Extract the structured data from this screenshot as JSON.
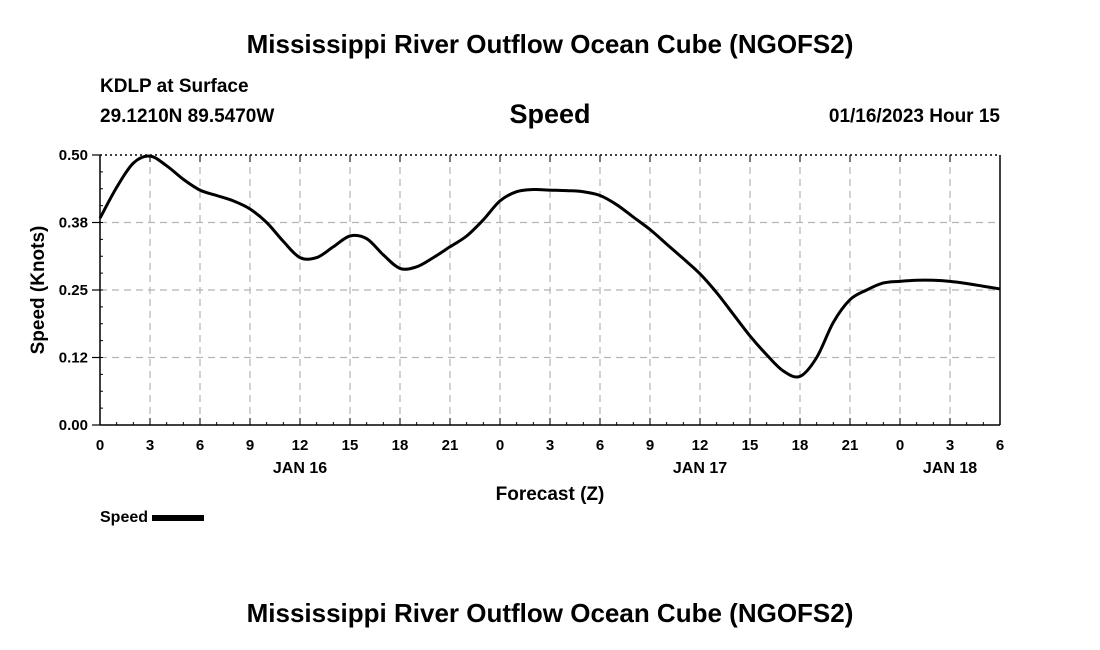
{
  "title": "Mississippi River Outflow Ocean Cube (NGOFS2)",
  "footer_title": "Mississippi River Outflow Ocean Cube (NGOFS2)",
  "station": "KDLP at Surface",
  "coordinates": "29.1210N  89.5470W",
  "variable": "Speed",
  "timestamp": "01/16/2023 Hour 15",
  "legend_label": "Speed",
  "chart_data": {
    "type": "line",
    "title": "Speed",
    "xlabel": "Forecast (Z)",
    "ylabel": "Speed (Knots)",
    "x_unit": "forecast hour (from Jan 16 00Z)",
    "xlim": [
      0,
      54
    ],
    "ylim": [
      0,
      0.5
    ],
    "y_ticks": [
      "0.00",
      "0.12",
      "0.25",
      "0.38",
      "0.50"
    ],
    "x_tick_labels": [
      "0",
      "3",
      "6",
      "9",
      "12",
      "15",
      "18",
      "21",
      "0",
      "3",
      "6",
      "9",
      "12",
      "15",
      "18",
      "21",
      "0",
      "3",
      "6"
    ],
    "day_labels": [
      {
        "label": "JAN 16",
        "at": 12
      },
      {
        "label": "JAN 17",
        "at": 36
      },
      {
        "label": "JAN 18",
        "at": 51
      }
    ],
    "grid": true,
    "legend_position": "bottom-left",
    "series": [
      {
        "name": "Speed",
        "color": "#000000",
        "x": [
          0,
          1,
          2,
          3,
          4,
          5,
          6,
          7,
          8,
          9,
          10,
          11,
          12,
          13,
          14,
          15,
          16,
          17,
          18,
          19,
          20,
          21,
          22,
          23,
          24,
          25,
          26,
          27,
          28,
          29,
          30,
          31,
          32,
          33,
          34,
          35,
          36,
          37,
          38,
          39,
          40,
          41,
          42,
          43,
          44,
          45,
          46,
          47,
          48,
          49,
          50,
          51,
          52,
          53,
          54
        ],
        "y": [
          0.383,
          0.44,
          0.485,
          0.498,
          0.48,
          0.455,
          0.435,
          0.425,
          0.415,
          0.4,
          0.375,
          0.34,
          0.31,
          0.31,
          0.33,
          0.35,
          0.345,
          0.315,
          0.29,
          0.293,
          0.31,
          0.33,
          0.35,
          0.38,
          0.415,
          0.432,
          0.436,
          0.435,
          0.434,
          0.432,
          0.425,
          0.408,
          0.385,
          0.362,
          0.335,
          0.308,
          0.28,
          0.245,
          0.205,
          0.165,
          0.13,
          0.1,
          0.09,
          0.125,
          0.19,
          0.232,
          0.25,
          0.263,
          0.266,
          0.268,
          0.268,
          0.266,
          0.262,
          0.257,
          0.252
        ]
      }
    ]
  }
}
